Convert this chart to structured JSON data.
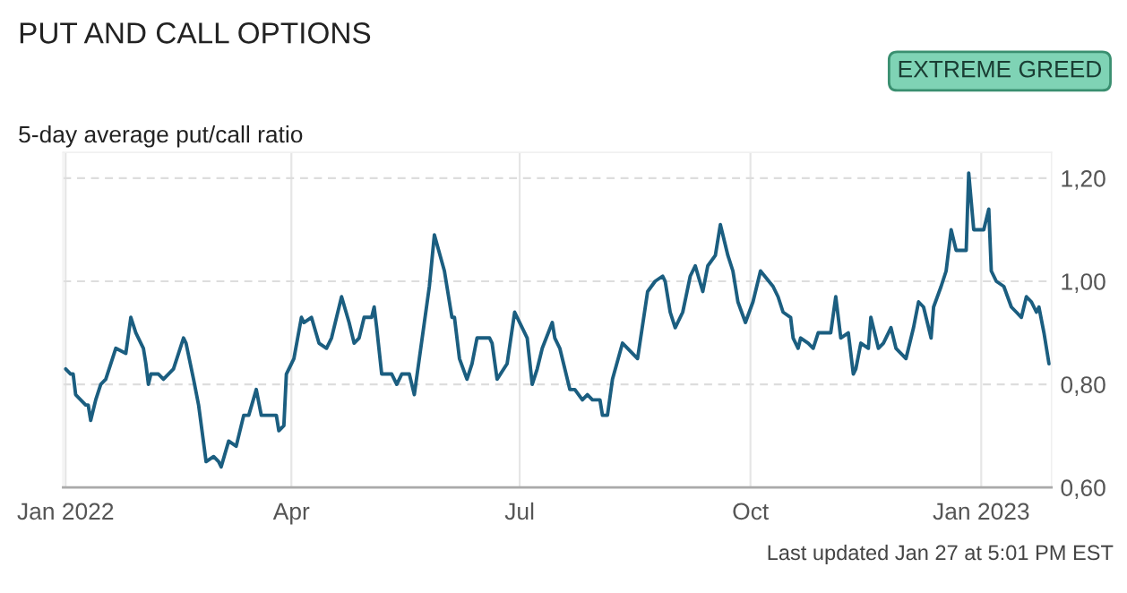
{
  "chart_data": {
    "type": "line",
    "title": "PUT AND CALL OPTIONS",
    "subtitle": "5-day average put/call ratio",
    "annotations": [
      "EXTREME GREED",
      "Last updated Jan 27 at 5:01 PM EST"
    ],
    "x": [
      "2022-01-01",
      "2022-01-03",
      "2022-01-04",
      "2022-01-05",
      "2022-01-07",
      "2022-01-09",
      "2022-01-10",
      "2022-01-11",
      "2022-01-13",
      "2022-01-15",
      "2022-01-17",
      "2022-01-21",
      "2022-01-25",
      "2022-01-27",
      "2022-01-29",
      "2022-02-01",
      "2022-02-02",
      "2022-02-03",
      "2022-02-04",
      "2022-02-07",
      "2022-02-09",
      "2022-02-11",
      "2022-02-13",
      "2022-02-15",
      "2022-02-17",
      "2022-02-18",
      "2022-02-21",
      "2022-02-23",
      "2022-02-26",
      "2022-03-01",
      "2022-03-03",
      "2022-03-04",
      "2022-03-07",
      "2022-03-10",
      "2022-03-13",
      "2022-03-15",
      "2022-03-18",
      "2022-03-20",
      "2022-03-26",
      "2022-03-27",
      "2022-03-29",
      "2022-03-30",
      "2022-04-02",
      "2022-04-05",
      "2022-04-06",
      "2022-04-09",
      "2022-04-12",
      "2022-04-15",
      "2022-04-17",
      "2022-04-21",
      "2022-04-24",
      "2022-04-26",
      "2022-04-28",
      "2022-04-30",
      "2022-05-03",
      "2022-05-04",
      "2022-05-05",
      "2022-05-07",
      "2022-05-11",
      "2022-05-13",
      "2022-05-15",
      "2022-05-18",
      "2022-05-20",
      "2022-05-22",
      "2022-05-24",
      "2022-05-26",
      "2022-05-28",
      "2022-06-01",
      "2022-06-04",
      "2022-06-05",
      "2022-06-07",
      "2022-06-10",
      "2022-06-12",
      "2022-06-14",
      "2022-06-19",
      "2022-06-20",
      "2022-06-22",
      "2022-06-26",
      "2022-06-29",
      "2022-07-01",
      "2022-07-04",
      "2022-07-06",
      "2022-07-08",
      "2022-07-10",
      "2022-07-14",
      "2022-07-15",
      "2022-07-17",
      "2022-07-21",
      "2022-07-23",
      "2022-07-26",
      "2022-07-28",
      "2022-07-30",
      "2022-08-02",
      "2022-08-03",
      "2022-08-05",
      "2022-08-07",
      "2022-08-11",
      "2022-08-13",
      "2022-08-17",
      "2022-08-21",
      "2022-08-24",
      "2022-08-27",
      "2022-08-28",
      "2022-08-30",
      "2022-09-01",
      "2022-09-04",
      "2022-09-07",
      "2022-09-09",
      "2022-09-12",
      "2022-09-14",
      "2022-09-17",
      "2022-09-19",
      "2022-09-22",
      "2022-09-24",
      "2022-09-26",
      "2022-09-29",
      "2022-10-02",
      "2022-10-05",
      "2022-10-10",
      "2022-10-12",
      "2022-10-14",
      "2022-10-17",
      "2022-10-18",
      "2022-10-20",
      "2022-10-21",
      "2022-10-24",
      "2022-10-26",
      "2022-10-28",
      "2022-10-31",
      "2022-11-02",
      "2022-11-04",
      "2022-11-05",
      "2022-11-06",
      "2022-11-09",
      "2022-11-11",
      "2022-11-12",
      "2022-11-14",
      "2022-11-17",
      "2022-11-18",
      "2022-11-20",
      "2022-11-21",
      "2022-11-23",
      "2022-11-26",
      "2022-11-28",
      "2022-11-30",
      "2022-12-02",
      "2022-12-05",
      "2022-12-07",
      "2022-12-09",
      "2022-12-10",
      "2022-12-12",
      "2022-12-13",
      "2022-12-16",
      "2022-12-18",
      "2022-12-20",
      "2022-12-22",
      "2022-12-25",
      "2022-12-26",
      "2022-12-27",
      "2022-12-29",
      "2023-01-02",
      "2023-01-04",
      "2023-01-05",
      "2023-01-07",
      "2023-01-10",
      "2023-01-13",
      "2023-01-15",
      "2023-01-17",
      "2023-01-19",
      "2023-01-21",
      "2023-01-23",
      "2023-01-24",
      "2023-01-26",
      "2023-01-28"
    ],
    "series": [
      {
        "color": "#1b5e80",
        "values": [
          0.83,
          0.82,
          0.82,
          0.78,
          0.77,
          0.76,
          0.76,
          0.73,
          0.77,
          0.8,
          0.81,
          0.87,
          0.86,
          0.93,
          0.9,
          0.87,
          0.84,
          0.8,
          0.82,
          0.82,
          0.81,
          0.82,
          0.83,
          0.86,
          0.89,
          0.88,
          0.81,
          0.76,
          0.65,
          0.66,
          0.65,
          0.64,
          0.69,
          0.68,
          0.74,
          0.74,
          0.79,
          0.74,
          0.74,
          0.71,
          0.72,
          0.82,
          0.85,
          0.93,
          0.92,
          0.93,
          0.88,
          0.87,
          0.89,
          0.97,
          0.92,
          0.88,
          0.89,
          0.93,
          0.93,
          0.95,
          0.91,
          0.82,
          0.82,
          0.8,
          0.82,
          0.82,
          0.78,
          0.85,
          0.92,
          0.99,
          1.09,
          1.02,
          0.93,
          0.93,
          0.85,
          0.81,
          0.84,
          0.89,
          0.89,
          0.88,
          0.81,
          0.84,
          0.94,
          0.92,
          0.89,
          0.8,
          0.83,
          0.87,
          0.92,
          0.89,
          0.87,
          0.79,
          0.79,
          0.77,
          0.78,
          0.77,
          0.77,
          0.74,
          0.74,
          0.81,
          0.88,
          0.87,
          0.85,
          0.98,
          1.0,
          1.01,
          1.0,
          0.94,
          0.91,
          0.94,
          1.01,
          1.03,
          0.98,
          1.03,
          1.05,
          1.11,
          1.05,
          1.02,
          0.96,
          0.92,
          0.96,
          1.02,
          0.99,
          0.97,
          0.94,
          0.93,
          0.89,
          0.87,
          0.89,
          0.88,
          0.87,
          0.9,
          0.9,
          0.9,
          0.97,
          0.93,
          0.89,
          0.9,
          0.82,
          0.83,
          0.88,
          0.87,
          0.93,
          0.89,
          0.87,
          0.88,
          0.91,
          0.87,
          0.86,
          0.85,
          0.91,
          0.96,
          0.95,
          0.93,
          0.89,
          0.95,
          0.99,
          1.02,
          1.1,
          1.06,
          1.06,
          1.06,
          1.21,
          1.1,
          1.1,
          1.14,
          1.02,
          1.0,
          0.99,
          0.95,
          0.94,
          0.93,
          0.97,
          0.96,
          0.94,
          0.95,
          0.9,
          0.84
        ]
      }
    ],
    "xlim": [
      "2021-12-31",
      "2023-01-29"
    ],
    "ylim": [
      0.6,
      1.25
    ],
    "xticks": [
      {
        "value": "2022-01-01",
        "label": "Jan 2022"
      },
      {
        "value": "2022-04-01",
        "label": "Apr"
      },
      {
        "value": "2022-07-01",
        "label": "Jul"
      },
      {
        "value": "2022-10-01",
        "label": "Oct"
      },
      {
        "value": "2023-01-01",
        "label": "Jan 2023"
      }
    ],
    "yticks": [
      {
        "value": 0.6,
        "label": "0,60"
      },
      {
        "value": 0.8,
        "label": "0,80"
      },
      {
        "value": 1.0,
        "label": "1,00"
      },
      {
        "value": 1.2,
        "label": "1,20"
      }
    ],
    "grid": true,
    "legend": false,
    "marker": "none",
    "line_style": "solid"
  }
}
